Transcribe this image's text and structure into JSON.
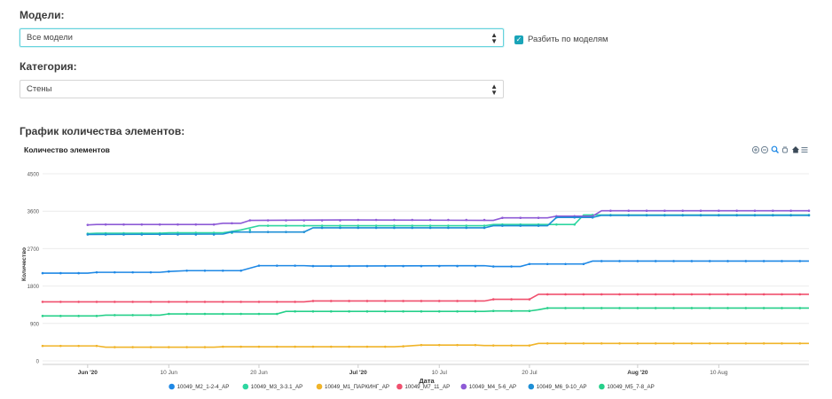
{
  "filters": {
    "models_label": "Модели:",
    "models_value": "Все модели",
    "split_label": "Разбить по моделям",
    "split_checked": true,
    "category_label": "Категория:",
    "category_value": "Стены"
  },
  "section_title": "График количества элементов:",
  "toolbar_icons": [
    "zoom-in-icon",
    "zoom-out-icon",
    "magnify-icon",
    "pan-icon",
    "home-icon",
    "menu-icon"
  ],
  "chart_data": {
    "type": "line",
    "title": "Количество элементов",
    "xlabel": "Дата",
    "ylabel": "Количество",
    "ylim": [
      0,
      4500
    ],
    "yticks": [
      0,
      900,
      1800,
      2700,
      3600,
      4500
    ],
    "xlim": [
      "2020-05-27",
      "2020-08-20"
    ],
    "xticks": [
      {
        "date": "2020-06-01",
        "label": "Jun '20"
      },
      {
        "date": "2020-06-10",
        "label": "10 Jun"
      },
      {
        "date": "2020-06-20",
        "label": "20 Jun"
      },
      {
        "date": "2020-07-01",
        "label": "Jul '20"
      },
      {
        "date": "2020-07-10",
        "label": "10 Jul"
      },
      {
        "date": "2020-07-20",
        "label": "20 Jul"
      },
      {
        "date": "2020-08-01",
        "label": "Aug '20"
      },
      {
        "date": "2020-08-10",
        "label": "10 Aug"
      }
    ],
    "grid": true,
    "legend": "bottom",
    "series": [
      {
        "name": "10049_M2_1-2-4_AP",
        "color": "#1e88e5",
        "points": [
          [
            "2020-05-27",
            2110
          ],
          [
            "2020-06-01",
            2110
          ],
          [
            "2020-06-02",
            2130
          ],
          [
            "2020-06-09",
            2130
          ],
          [
            "2020-06-10",
            2150
          ],
          [
            "2020-06-12",
            2170
          ],
          [
            "2020-06-18",
            2170
          ],
          [
            "2020-06-20",
            2290
          ],
          [
            "2020-06-25",
            2290
          ],
          [
            "2020-06-26",
            2280
          ],
          [
            "2020-07-15",
            2290
          ],
          [
            "2020-07-16",
            2270
          ],
          [
            "2020-07-19",
            2270
          ],
          [
            "2020-07-20",
            2330
          ],
          [
            "2020-07-26",
            2330
          ],
          [
            "2020-07-27",
            2400
          ],
          [
            "2020-08-20",
            2400
          ]
        ]
      },
      {
        "name": "10049_M3_3-3.1_AP",
        "color": "#2ed6a0",
        "points": [
          [
            "2020-06-01",
            3060
          ],
          [
            "2020-06-02",
            3070
          ],
          [
            "2020-06-09",
            3070
          ],
          [
            "2020-06-10",
            3080
          ],
          [
            "2020-06-16",
            3080
          ],
          [
            "2020-06-18",
            3150
          ],
          [
            "2020-06-20",
            3250
          ],
          [
            "2020-07-15",
            3250
          ],
          [
            "2020-07-16",
            3280
          ],
          [
            "2020-07-25",
            3280
          ],
          [
            "2020-07-26",
            3510
          ],
          [
            "2020-08-20",
            3510
          ]
        ]
      },
      {
        "name": "10049_M1_ПАРКИНГ_AP",
        "color": "#f0b429",
        "points": [
          [
            "2020-05-27",
            360
          ],
          [
            "2020-06-02",
            360
          ],
          [
            "2020-06-03",
            330
          ],
          [
            "2020-06-15",
            330
          ],
          [
            "2020-06-16",
            340
          ],
          [
            "2020-07-05",
            340
          ],
          [
            "2020-07-06",
            350
          ],
          [
            "2020-07-08",
            380
          ],
          [
            "2020-07-14",
            380
          ],
          [
            "2020-07-15",
            370
          ],
          [
            "2020-07-20",
            370
          ],
          [
            "2020-07-21",
            420
          ],
          [
            "2020-08-20",
            420
          ]
        ]
      },
      {
        "name": "10049_M7_11_AP",
        "color": "#f0506e",
        "points": [
          [
            "2020-05-27",
            1420
          ],
          [
            "2020-06-25",
            1420
          ],
          [
            "2020-06-26",
            1440
          ],
          [
            "2020-07-15",
            1440
          ],
          [
            "2020-07-16",
            1480
          ],
          [
            "2020-07-20",
            1480
          ],
          [
            "2020-07-21",
            1600
          ],
          [
            "2020-08-20",
            1600
          ]
        ]
      },
      {
        "name": "10049_M4_5-6_AP",
        "color": "#8e5bd6",
        "points": [
          [
            "2020-06-01",
            3270
          ],
          [
            "2020-06-02",
            3280
          ],
          [
            "2020-06-15",
            3280
          ],
          [
            "2020-06-16",
            3310
          ],
          [
            "2020-06-18",
            3310
          ],
          [
            "2020-06-19",
            3380
          ],
          [
            "2020-06-30",
            3390
          ],
          [
            "2020-07-16",
            3380
          ],
          [
            "2020-07-17",
            3440
          ],
          [
            "2020-07-22",
            3440
          ],
          [
            "2020-07-23",
            3480
          ],
          [
            "2020-07-27",
            3480
          ],
          [
            "2020-07-28",
            3610
          ],
          [
            "2020-08-20",
            3610
          ]
        ]
      },
      {
        "name": "10049_M6_9-10_AP",
        "color": "#1e8fd6",
        "points": [
          [
            "2020-06-01",
            3040
          ],
          [
            "2020-06-16",
            3050
          ],
          [
            "2020-06-17",
            3100
          ],
          [
            "2020-06-25",
            3100
          ],
          [
            "2020-06-26",
            3200
          ],
          [
            "2020-07-15",
            3200
          ],
          [
            "2020-07-16",
            3250
          ],
          [
            "2020-07-22",
            3250
          ],
          [
            "2020-07-23",
            3450
          ],
          [
            "2020-07-27",
            3450
          ],
          [
            "2020-07-28",
            3500
          ],
          [
            "2020-08-20",
            3500
          ]
        ]
      },
      {
        "name": "10049_M5_7-8_AP",
        "color": "#26d08a",
        "points": [
          [
            "2020-05-27",
            1080
          ],
          [
            "2020-06-02",
            1080
          ],
          [
            "2020-06-03",
            1100
          ],
          [
            "2020-06-09",
            1100
          ],
          [
            "2020-06-10",
            1130
          ],
          [
            "2020-06-22",
            1130
          ],
          [
            "2020-06-23",
            1190
          ],
          [
            "2020-07-15",
            1190
          ],
          [
            "2020-07-16",
            1200
          ],
          [
            "2020-07-20",
            1200
          ],
          [
            "2020-07-21",
            1230
          ],
          [
            "2020-07-22",
            1270
          ],
          [
            "2020-08-20",
            1270
          ]
        ]
      }
    ]
  }
}
